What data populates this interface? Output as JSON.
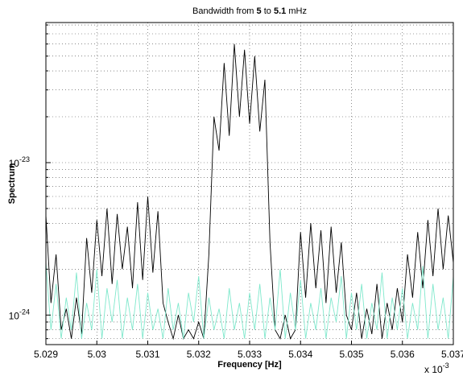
{
  "chart_data": {
    "type": "line",
    "title_parts": [
      {
        "text": "Bandwidth from",
        "bold": false
      },
      {
        "text": "5",
        "bold": true
      },
      {
        "text": "to",
        "bold": false
      },
      {
        "text": "5.1",
        "bold": true
      },
      {
        "text": "mHz",
        "bold": false
      }
    ],
    "x_label": "Frequency [Hz]",
    "y_label": "Spectrum",
    "x_multiplier": {
      "base": "x 10",
      "exponent": "-3"
    },
    "log_y": true,
    "grid": true,
    "xlim": [
      5.029,
      5.037
    ],
    "xticks": [
      5.029,
      5.03,
      5.031,
      5.032,
      5.033,
      5.034,
      5.035,
      5.036,
      5.037
    ],
    "ylim": [
      6.4e-25,
      8.3e-23
    ],
    "yticks": [
      {
        "value": 1e-24,
        "label": {
          "base": "10",
          "exponent": "-24"
        }
      },
      {
        "value": 1e-23,
        "label": {
          "base": "10",
          "exponent": "-23"
        }
      }
    ],
    "yminorticks": [
      7e-25,
      8e-25,
      9e-25,
      2e-24,
      3e-24,
      4e-24,
      5e-24,
      6e-24,
      7e-24,
      8e-24,
      9e-24,
      2e-23,
      3e-23,
      4e-23,
      5e-23,
      6e-23,
      7e-23,
      8e-23
    ],
    "x": [
      5.029,
      5.0291,
      5.0292,
      5.0293,
      5.0294,
      5.0295,
      5.0296,
      5.0297,
      5.0298,
      5.0299,
      5.03,
      5.0301,
      5.0302,
      5.0303,
      5.0304,
      5.0305,
      5.0306,
      5.0307,
      5.0308,
      5.0309,
      5.031,
      5.0311,
      5.0312,
      5.0313,
      5.0314,
      5.0315,
      5.0316,
      5.0317,
      5.0318,
      5.0319,
      5.032,
      5.0321,
      5.0322,
      5.0323,
      5.0324,
      5.0325,
      5.0326,
      5.0327,
      5.0328,
      5.0329,
      5.033,
      5.0331,
      5.0332,
      5.0333,
      5.0334,
      5.0335,
      5.0336,
      5.0337,
      5.0338,
      5.0339,
      5.034,
      5.0341,
      5.0342,
      5.0343,
      5.0344,
      5.0345,
      5.0346,
      5.0347,
      5.0348,
      5.0349,
      5.035,
      5.0351,
      5.0352,
      5.0353,
      5.0354,
      5.0355,
      5.0356,
      5.0357,
      5.0358,
      5.0359,
      5.036,
      5.0361,
      5.0362,
      5.0363,
      5.0364,
      5.0365,
      5.0366,
      5.0367,
      5.0368,
      5.0369,
      5.037
    ],
    "series": [
      {
        "color": "#000000",
        "values": [
          4.5e-24,
          1.2e-24,
          2.5e-24,
          8e-25,
          1.1e-24,
          7e-25,
          1.3e-24,
          7.5e-25,
          3.2e-24,
          1.4e-24,
          4.2e-24,
          1.8e-24,
          5e-24,
          1.6e-24,
          4.6e-24,
          2e-24,
          3.8e-24,
          1.5e-24,
          5.5e-24,
          1.7e-24,
          6e-24,
          1.9e-24,
          4.8e-24,
          1.2e-24,
          9e-25,
          7e-25,
          1e-24,
          7e-25,
          8e-25,
          7e-25,
          9e-25,
          7e-25,
          2.5e-24,
          2e-23,
          1.2e-23,
          4.5e-23,
          1.5e-23,
          6e-23,
          2e-23,
          5.5e-23,
          1.8e-23,
          5e-23,
          1.6e-23,
          3.5e-23,
          3e-24,
          8e-25,
          7e-25,
          1e-24,
          7e-25,
          8e-25,
          3.5e-24,
          1.3e-24,
          4e-24,
          1.5e-24,
          3.6e-24,
          1.2e-24,
          3.8e-24,
          1.4e-24,
          3e-24,
          1e-24,
          8e-25,
          1.4e-24,
          7e-25,
          1.1e-24,
          7.5e-25,
          1.6e-24,
          7e-25,
          1.2e-24,
          8e-25,
          1.5e-24,
          9e-25,
          2.5e-24,
          1.3e-24,
          3.5e-24,
          1.5e-24,
          4.2e-24,
          1.8e-24,
          5e-24,
          2e-24,
          4.5e-24,
          2.2e-24
        ]
      },
      {
        "color": "#7fe8cc",
        "values": [
          2.2e-24,
          8e-25,
          1.6e-24,
          7e-25,
          1.3e-24,
          8e-25,
          1.9e-24,
          7e-25,
          1.2e-24,
          8e-25,
          2e-24,
          7e-25,
          1.5e-24,
          9e-25,
          1.7e-24,
          7e-25,
          1.3e-24,
          8e-25,
          1.6e-24,
          7e-25,
          1.4e-24,
          8e-25,
          1.1e-24,
          7e-25,
          1.5e-24,
          8e-25,
          1.2e-24,
          7e-25,
          1.4e-24,
          9e-25,
          1.8e-24,
          7e-25,
          1.3e-24,
          8e-25,
          1.1e-24,
          7e-25,
          1.5e-24,
          8e-25,
          1.2e-24,
          7e-25,
          1.4e-24,
          8e-25,
          1.6e-24,
          7e-25,
          1.3e-24,
          8e-25,
          2e-24,
          7e-25,
          1.4e-24,
          8e-25,
          1.7e-24,
          7e-25,
          1.2e-24,
          8e-25,
          1.5e-24,
          7e-25,
          1.3e-24,
          9e-25,
          1.8e-24,
          7e-25,
          1.4e-24,
          8e-25,
          1.6e-24,
          7e-25,
          1.2e-24,
          8e-25,
          1.9e-24,
          7e-25,
          1.3e-24,
          8e-25,
          1.5e-24,
          7e-25,
          1.2e-24,
          8e-25,
          2.1e-24,
          7e-25,
          1.6e-24,
          8e-25,
          1.3e-24,
          7e-25,
          1.8e-24
        ]
      }
    ]
  }
}
